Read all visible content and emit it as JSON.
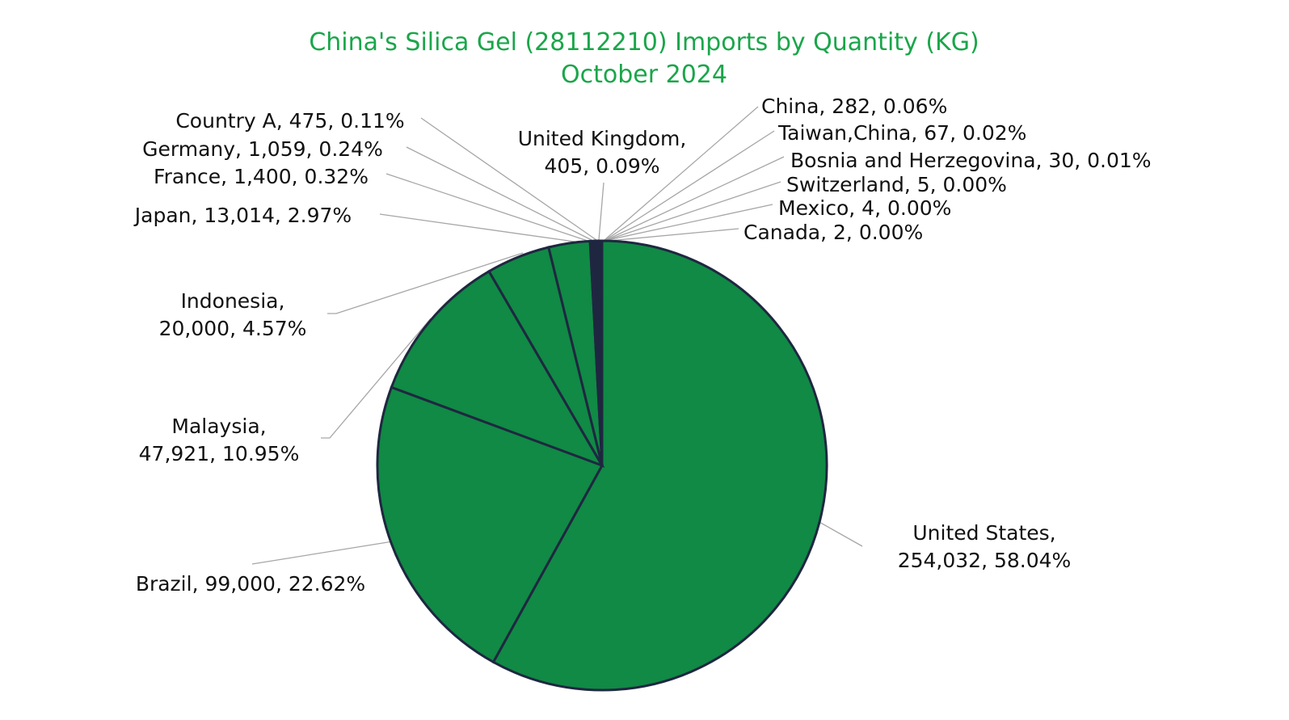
{
  "chart_data": {
    "type": "pie",
    "title": "China's Silica Gel (28112210) Imports by Quantity (KG)",
    "subtitle": "October 2024",
    "slice_colors": {
      "large": "#108a45",
      "tiny": "#1f2740"
    },
    "slices": [
      {
        "name": "United States",
        "value": 254032,
        "percent": "58.04%",
        "label_lines": [
          "United States,",
          "254,032, 58.04%"
        ]
      },
      {
        "name": "Brazil",
        "value": 99000,
        "percent": "22.62%",
        "label_lines": [
          "Brazil, 99,000, 22.62%"
        ]
      },
      {
        "name": "Malaysia",
        "value": 47921,
        "percent": "10.95%",
        "label_lines": [
          "Malaysia,",
          "47,921, 10.95%"
        ]
      },
      {
        "name": "Indonesia",
        "value": 20000,
        "percent": "4.57%",
        "label_lines": [
          "Indonesia,",
          "20,000, 4.57%"
        ]
      },
      {
        "name": "Japan",
        "value": 13014,
        "percent": "2.97%",
        "label_lines": [
          "Japan, 13,014, 2.97%"
        ]
      },
      {
        "name": "France",
        "value": 1400,
        "percent": "0.32%",
        "label_lines": [
          "France, 1,400, 0.32%"
        ]
      },
      {
        "name": "Germany",
        "value": 1059,
        "percent": "0.24%",
        "label_lines": [
          "Germany, 1,059, 0.24%"
        ]
      },
      {
        "name": "Country A",
        "value": 475,
        "percent": "0.11%",
        "label_lines": [
          "Country A, 475, 0.11%"
        ]
      },
      {
        "name": "United Kingdom",
        "value": 405,
        "percent": "0.09%",
        "label_lines": [
          "United Kingdom,",
          "405, 0.09%"
        ]
      },
      {
        "name": "China",
        "value": 282,
        "percent": "0.06%",
        "label_lines": [
          "China, 282, 0.06%"
        ]
      },
      {
        "name": "Taiwan,China",
        "value": 67,
        "percent": "0.02%",
        "label_lines": [
          "Taiwan,China, 67, 0.02%"
        ]
      },
      {
        "name": "Bosnia and Herzegovina",
        "value": 30,
        "percent": "0.01%",
        "label_lines": [
          "Bosnia and Herzegovina, 30, 0.01%"
        ]
      },
      {
        "name": "Switzerland",
        "value": 5,
        "percent": "0.00%",
        "label_lines": [
          "Switzerland, 5, 0.00%"
        ]
      },
      {
        "name": "Mexico",
        "value": 4,
        "percent": "0.00%",
        "label_lines": [
          "Mexico, 4, 0.00%"
        ]
      },
      {
        "name": "Canada",
        "value": 2,
        "percent": "0.00%",
        "label_lines": [
          "Canada, 2, 0.00%"
        ]
      }
    ]
  }
}
